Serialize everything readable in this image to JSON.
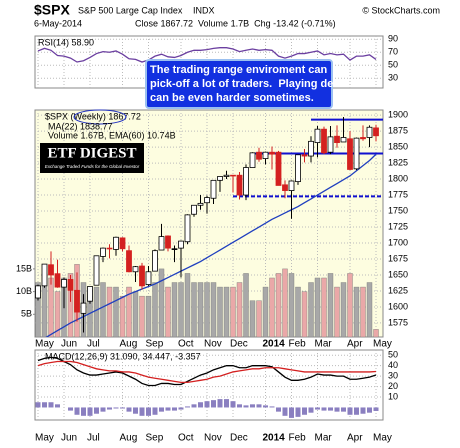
{
  "header": {
    "symbol": "$SPX",
    "name": "S&P 500 Large Cap Index",
    "exchange": "INDX",
    "copyright": "© StockCharts.com",
    "date": "6-May-2014",
    "quote": "Close 1867.72  Volume 1.7B  Chg -13.42 (-0.71%)"
  },
  "chart_data": [
    {
      "type": "line",
      "series": [
        {
          "name": "RSI(14) 58.90",
          "color": "#6b3fa0",
          "values": [
            72,
            76,
            73,
            65,
            64,
            61,
            55,
            57,
            62,
            68,
            71,
            70,
            72,
            67,
            60,
            59,
            55,
            58,
            64,
            67,
            63,
            62,
            65,
            70,
            73,
            73,
            74,
            76,
            77,
            77,
            75,
            71,
            73,
            75,
            73,
            74,
            73,
            64,
            61,
            64,
            68,
            68,
            70,
            72,
            66,
            68,
            66,
            67,
            58,
            64,
            64,
            66,
            58.9
          ]
        }
      ],
      "ylim": [
        15,
        95
      ],
      "yticks": [
        90,
        70,
        50,
        30
      ],
      "grid": true
    },
    {
      "type": "candlestick",
      "name": "$SPX (Weekly) 1867.72",
      "up_color": "#000000",
      "down_color": "#d42020",
      "categories": [
        "May",
        null,
        null,
        null,
        "Jun",
        null,
        null,
        null,
        "Jul",
        null,
        null,
        null,
        null,
        "Aug",
        null,
        null,
        null,
        "Sep",
        null,
        null,
        null,
        null,
        "Oct",
        null,
        null,
        null,
        "Nov",
        null,
        null,
        null,
        "Dec",
        null,
        null,
        null,
        null,
        "2014",
        null,
        null,
        null,
        "Feb",
        null,
        null,
        null,
        "Mar",
        null,
        null,
        null,
        null,
        "Apr",
        null,
        null,
        null,
        "May"
      ],
      "open": [
        1614,
        1633,
        1666,
        1652,
        1631,
        1643,
        1626,
        1590,
        1609,
        1634,
        1679,
        1692,
        1690,
        1708,
        1688,
        1655,
        1664,
        1635,
        1656,
        1689,
        1711,
        1691,
        1692,
        1702,
        1745,
        1759,
        1763,
        1770,
        1798,
        1804,
        1806,
        1806,
        1775,
        1818,
        1842,
        1832,
        1842,
        1842,
        1791,
        1782,
        1796,
        1838,
        1836,
        1857,
        1878,
        1842,
        1867,
        1858,
        1863,
        1816,
        1865,
        1865,
        1880
      ],
      "high": [
        1635,
        1667,
        1687,
        1674,
        1646,
        1650,
        1654,
        1620,
        1632,
        1680,
        1693,
        1698,
        1710,
        1709,
        1696,
        1664,
        1669,
        1664,
        1690,
        1730,
        1712,
        1696,
        1704,
        1745,
        1759,
        1775,
        1774,
        1798,
        1804,
        1813,
        1806,
        1811,
        1823,
        1842,
        1849,
        1843,
        1851,
        1844,
        1798,
        1798,
        1838,
        1847,
        1867,
        1883,
        1882,
        1883,
        1884,
        1897,
        1875,
        1865,
        1884,
        1884,
        1885
      ],
      "low": [
        1610,
        1630,
        1635,
        1630,
        1598,
        1608,
        1577,
        1560,
        1605,
        1634,
        1670,
        1676,
        1680,
        1687,
        1654,
        1639,
        1627,
        1633,
        1656,
        1689,
        1687,
        1670,
        1646,
        1698,
        1741,
        1752,
        1746,
        1761,
        1780,
        1800,
        1779,
        1768,
        1767,
        1818,
        1827,
        1823,
        1815,
        1790,
        1770,
        1738,
        1791,
        1826,
        1826,
        1834,
        1839,
        1839,
        1849,
        1858,
        1814,
        1814,
        1860,
        1850,
        1859
      ],
      "close": [
        1633,
        1667,
        1650,
        1631,
        1643,
        1626,
        1592,
        1606,
        1632,
        1680,
        1692,
        1691,
        1709,
        1691,
        1655,
        1663,
        1633,
        1655,
        1688,
        1710,
        1692,
        1691,
        1703,
        1744,
        1759,
        1762,
        1771,
        1798,
        1804,
        1806,
        1805,
        1775,
        1818,
        1841,
        1831,
        1842,
        1839,
        1790,
        1782,
        1797,
        1838,
        1836,
        1859,
        1878,
        1841,
        1866,
        1857,
        1865,
        1815,
        1864,
        1863,
        1881,
        1867.72
      ],
      "series": [
        {
          "name": "MA(22) 1838.77",
          "color": "#1f3fbf",
          "values": [
            1545,
            1551,
            1557,
            1563,
            1569,
            1575,
            1580,
            1585,
            1590,
            1595,
            1600,
            1605,
            1610,
            1615,
            1620,
            1624,
            1628,
            1632,
            1636,
            1641,
            1646,
            1651,
            1656,
            1661,
            1666,
            1671,
            1677,
            1683,
            1689,
            1695,
            1701,
            1707,
            1713,
            1719,
            1725,
            1731,
            1737,
            1742,
            1747,
            1752,
            1757,
            1763,
            1769,
            1775,
            1781,
            1787,
            1793,
            1799,
            1805,
            1813,
            1821,
            1829,
            1838.77
          ]
        },
        {
          "name": "Volume 1.67B, EMA(60) 10.74B",
          "axis": "y2",
          "up_color": "#a8a8a8",
          "down_color": "#eaa8a8",
          "values": [
            12,
            14,
            13,
            10,
            13,
            14,
            16,
            12,
            9,
            11,
            12,
            11,
            11,
            9,
            11,
            10,
            9,
            9,
            12,
            15,
            11,
            12,
            12,
            14,
            12,
            12,
            12,
            12,
            11,
            11,
            11,
            12,
            14,
            8,
            8,
            11,
            13,
            14,
            15,
            14,
            11,
            10,
            12,
            13,
            13,
            14,
            11,
            12,
            14,
            11,
            11,
            12,
            1.67
          ]
        }
      ],
      "ylim": [
        1553,
        1908
      ],
      "yticks": [
        1900,
        1875,
        1850,
        1825,
        1800,
        1775,
        1750,
        1725,
        1700,
        1675,
        1650,
        1625,
        1600,
        1575
      ],
      "y2lim": [
        0,
        50
      ],
      "y2ticks": [
        {
          "value": 15,
          "label": "15B"
        },
        {
          "value": 10,
          "label": "10B"
        },
        {
          "value": 5,
          "label": "5B"
        }
      ],
      "grid": true,
      "background": "#fdfde0",
      "levels": [
        {
          "value": 1893,
          "start": 42,
          "color": "#1010d0"
        },
        {
          "value": 1840,
          "start": 33,
          "color": "#1010d0"
        },
        {
          "value": 1773,
          "start": 30,
          "color": "#1010d0",
          "dashed": true
        }
      ],
      "annotation": [
        "The trading range enviroment can",
        "pick-off a lot of traders.  Playing defense",
        "can be even harder sometimes."
      ],
      "logo": {
        "title": "ETF DIGEST",
        "tagline": "Exchange Traded Funds for the Global Investor"
      }
    },
    {
      "type": "line",
      "name": "MACD(12,26,9) 31.090, 34.447, -3.357",
      "series": [
        {
          "color": "#000000",
          "values": [
            45,
            47,
            48,
            47,
            44,
            41,
            36,
            33,
            31,
            31,
            32,
            33,
            34,
            33,
            30,
            27,
            23,
            21,
            21,
            23,
            23,
            22,
            22,
            25,
            28,
            31,
            33,
            36,
            38,
            40,
            40,
            38,
            38,
            40,
            40,
            40,
            39,
            34,
            29,
            26,
            26,
            27,
            29,
            32,
            31,
            31,
            30,
            30,
            27,
            27,
            28,
            29,
            31.09
          ]
        },
        {
          "color": "#d42020",
          "values": [
            40,
            42,
            43,
            44,
            44,
            44,
            43,
            41,
            39,
            37,
            36,
            35,
            35,
            34,
            34,
            33,
            31,
            29,
            28,
            27,
            26,
            25,
            24,
            24,
            25,
            26,
            27,
            29,
            30,
            32,
            34,
            35,
            36,
            37,
            37,
            38,
            38,
            38,
            37,
            36,
            35,
            34,
            34,
            34,
            34,
            34,
            34,
            34,
            34,
            34,
            34,
            34,
            34.447
          ]
        }
      ],
      "bars": {
        "color": "#8a7fc0",
        "values": [
          5,
          5,
          5,
          3,
          0,
          -3,
          -7,
          -8,
          -8,
          -6,
          -4,
          -2,
          -1,
          -1,
          -4,
          -6,
          -8,
          -8,
          -7,
          -4,
          -3,
          -3,
          -2,
          1,
          3,
          5,
          6,
          7,
          8,
          8,
          6,
          3,
          2,
          3,
          3,
          2,
          1,
          -4,
          -8,
          -10,
          -9,
          -7,
          -5,
          -2,
          -3,
          -3,
          -4,
          -4,
          -7,
          -7,
          -6,
          -5,
          -3.357
        ]
      },
      "ylim": [
        -12,
        55
      ],
      "yticks": [
        50,
        40,
        30,
        20,
        10
      ],
      "grid": true
    }
  ]
}
